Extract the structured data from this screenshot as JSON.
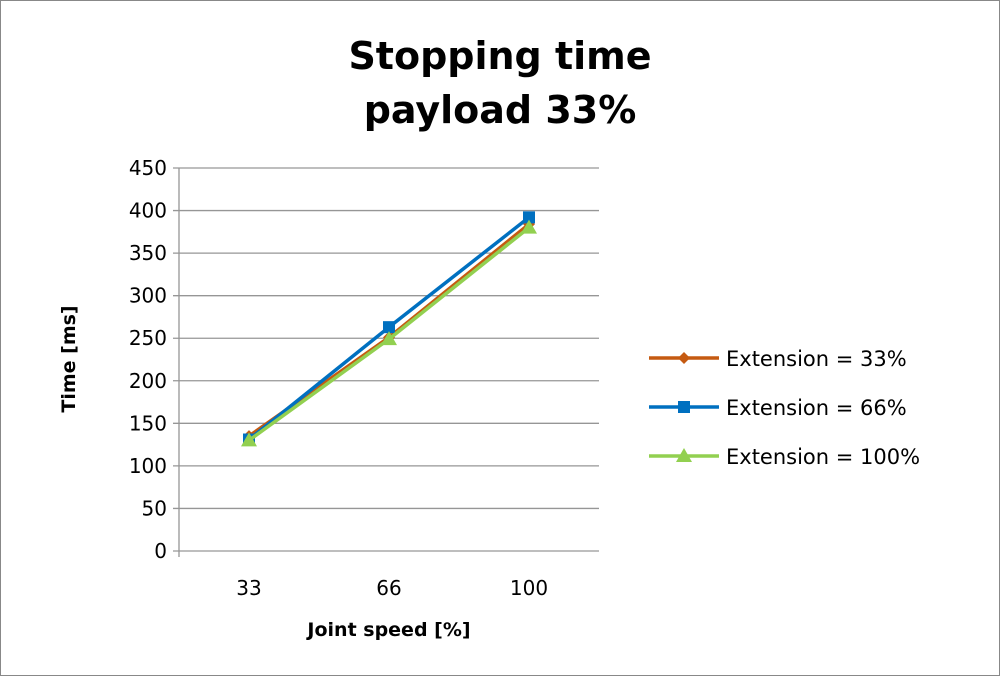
{
  "chart_data": {
    "type": "line",
    "title": "Stopping time",
    "subtitle": "payload 33%",
    "xlabel": "Joint speed [%]",
    "ylabel": "Time [ms]",
    "categories": [
      "33",
      "66",
      "100"
    ],
    "ylim": [
      0,
      450
    ],
    "yticks": [
      "0",
      "50",
      "100",
      "150",
      "200",
      "250",
      "300",
      "350",
      "400",
      "450"
    ],
    "grid": true,
    "legend_position": "right",
    "series": [
      {
        "name": "Extension = 33%",
        "values": [
          135,
          251,
          384
        ],
        "color": "#C55A11",
        "marker": "diamond"
      },
      {
        "name": "Extension = 66%",
        "values": [
          131,
          263,
          392
        ],
        "color": "#0070C0",
        "marker": "square"
      },
      {
        "name": "Extension = 100%",
        "values": [
          130,
          249,
          380
        ],
        "color": "#92D050",
        "marker": "triangle"
      }
    ]
  }
}
